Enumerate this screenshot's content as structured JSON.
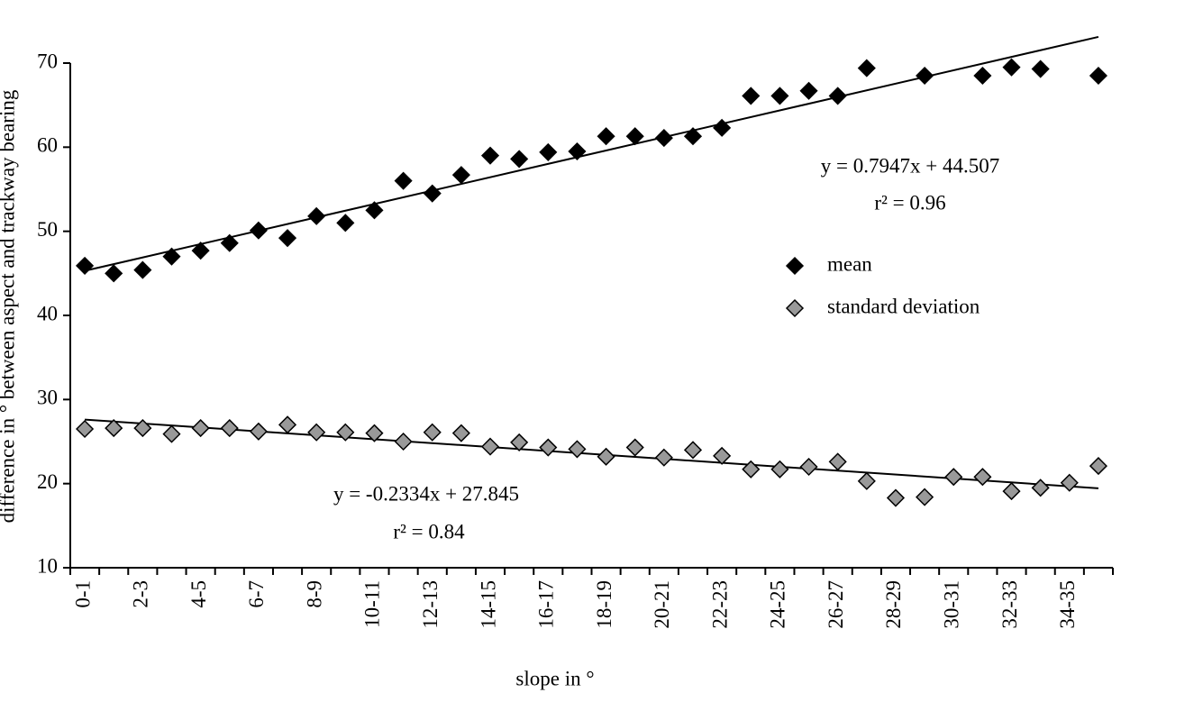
{
  "chart_data": {
    "type": "scatter",
    "y_label": "difference in ° between aspect and trackway bearing",
    "x_label": "slope in °",
    "categories": [
      "0-1",
      null,
      "2-3",
      null,
      "4-5",
      null,
      "6-7",
      null,
      "8-9",
      null,
      "10-11",
      null,
      "12-13",
      null,
      "14-15",
      null,
      "16-17",
      null,
      "18-19",
      null,
      "20-21",
      null,
      "22-23",
      null,
      "24-25",
      null,
      "26-27",
      null,
      "28-29",
      null,
      "30-31",
      null,
      "32-33",
      null,
      "34-35",
      null
    ],
    "ylim": [
      10,
      70
    ],
    "yticks": [
      10,
      20,
      30,
      40,
      50,
      60,
      70
    ],
    "series": [
      {
        "name": "mean",
        "color": "#000000",
        "values": [
          45.9,
          45.0,
          45.4,
          47.0,
          47.7,
          48.6,
          50.1,
          49.2,
          51.8,
          51.0,
          52.5,
          56.0,
          54.5,
          56.7,
          59.0,
          58.6,
          59.4,
          59.5,
          61.3,
          61.3,
          61.1,
          61.3,
          62.3,
          66.1,
          66.1,
          66.7,
          66.1,
          69.4,
          null,
          68.5,
          null,
          68.5,
          69.5,
          69.3,
          null,
          68.5
        ],
        "trend": {
          "slope": 0.7947,
          "intercept": 44.507,
          "equation": "y = 0.7947x + 44.507",
          "r2": "r² = 0.96"
        }
      },
      {
        "name": "standard deviation",
        "color": "#999999",
        "values": [
          26.5,
          26.6,
          26.6,
          25.9,
          26.6,
          26.6,
          26.2,
          27.0,
          26.1,
          26.1,
          26.0,
          25.0,
          26.1,
          26.0,
          24.4,
          24.9,
          24.3,
          24.1,
          23.2,
          24.3,
          23.1,
          24.0,
          23.3,
          21.7,
          21.7,
          22.0,
          22.6,
          20.3,
          18.3,
          18.4,
          20.8,
          20.8,
          19.1,
          19.5,
          20.1,
          22.1
        ],
        "trend": {
          "slope": -0.2334,
          "intercept": 27.845,
          "equation": "y = -0.2334x + 27.845",
          "r2": "r² = 0.84"
        }
      }
    ]
  }
}
